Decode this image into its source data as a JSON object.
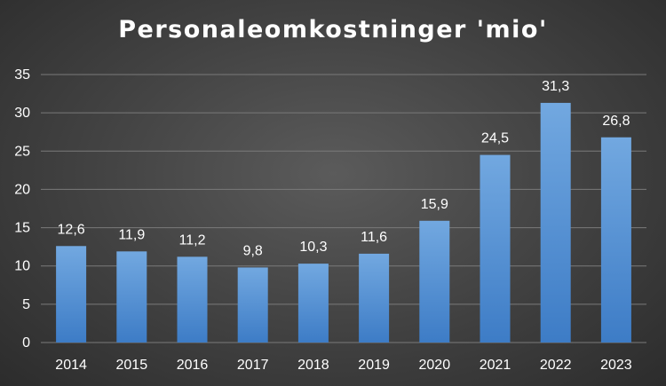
{
  "chart_data": {
    "type": "bar",
    "title": "Personaleomkostninger 'mio'",
    "categories": [
      "2014",
      "2015",
      "2016",
      "2017",
      "2018",
      "2019",
      "2020",
      "2021",
      "2022",
      "2023"
    ],
    "values": [
      12.6,
      11.9,
      11.2,
      9.8,
      10.3,
      11.6,
      15.9,
      24.5,
      31.3,
      26.8
    ],
    "data_labels": [
      "12,6",
      "11,9",
      "11,2",
      "9,8",
      "10,3",
      "11,6",
      "15,9",
      "24,5",
      "31,3",
      "26,8"
    ],
    "y_ticks": [
      "0",
      "5",
      "10",
      "15",
      "20",
      "25",
      "30",
      "35"
    ],
    "ylim": [
      0,
      35
    ],
    "xlabel": "",
    "ylabel": "",
    "grid": true,
    "legend": false,
    "colors": {
      "bar_top": "#72a8e0",
      "bar_bottom": "#3d7cc6",
      "gridline": "#7a7a7a",
      "text": "#ffffff"
    }
  }
}
